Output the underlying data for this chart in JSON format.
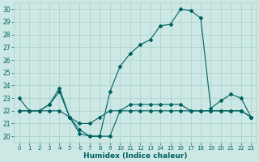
{
  "xlabel": "Humidex (Indice chaleur)",
  "bg_color": "#cce8e4",
  "grid_color": "#aacfca",
  "line_color": "#006060",
  "xlim": [
    -0.5,
    23.5
  ],
  "ylim": [
    19.5,
    30.5
  ],
  "xticks": [
    0,
    1,
    2,
    3,
    4,
    5,
    6,
    7,
    8,
    9,
    10,
    11,
    12,
    13,
    14,
    15,
    16,
    17,
    18,
    19,
    20,
    21,
    22,
    23
  ],
  "yticks": [
    20,
    21,
    22,
    23,
    24,
    25,
    26,
    27,
    28,
    29,
    30
  ],
  "line1_x": [
    0,
    1,
    2,
    3,
    4,
    5,
    6,
    7,
    8,
    9,
    10,
    11,
    12,
    13,
    14,
    15,
    16,
    17,
    18,
    19,
    20,
    21,
    22,
    23
  ],
  "line1_y": [
    23,
    22,
    22,
    22,
    22,
    21.5,
    21,
    21,
    21.5,
    22,
    22,
    22,
    22,
    22,
    22,
    22,
    22,
    22,
    22,
    22,
    22,
    22,
    22,
    21.5
  ],
  "line2_x": [
    0,
    1,
    2,
    3,
    4,
    5,
    6,
    7,
    8,
    9,
    10,
    11,
    12,
    13,
    14,
    15,
    16,
    17,
    18,
    19,
    20,
    21,
    22,
    23
  ],
  "line2_y": [
    22,
    22,
    22,
    22.5,
    23.5,
    21.5,
    20.5,
    20,
    20,
    20,
    22,
    22.5,
    22.5,
    22.5,
    22.5,
    22.5,
    22.5,
    22,
    22,
    22,
    22,
    22,
    22,
    21.5
  ],
  "line3_x": [
    0,
    1,
    2,
    3,
    4,
    5,
    6,
    7,
    8,
    9,
    10,
    11,
    12,
    13,
    14,
    15,
    16,
    17,
    18,
    19,
    20,
    21,
    22,
    23
  ],
  "line3_y": [
    22,
    22,
    22,
    22.5,
    23.8,
    21.5,
    20.2,
    20,
    20,
    23.5,
    25.5,
    26.5,
    27.2,
    27.6,
    28.7,
    28.8,
    30.0,
    29.9,
    29.3,
    22.2,
    22.8,
    23.3,
    23.0,
    21.5
  ]
}
